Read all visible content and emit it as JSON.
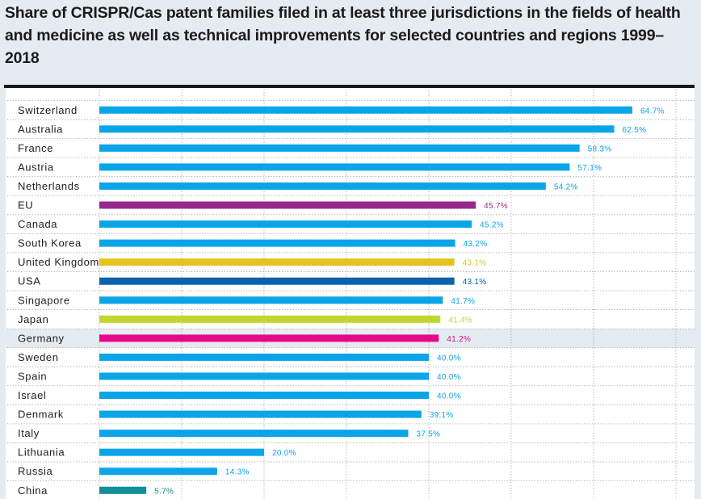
{
  "chart_data": {
    "type": "bar",
    "orientation": "horizontal",
    "title": "Share of CRISPR/Cas patent families filed in at least three jurisdictions in the fields of health and medicine as well as technical improvements for selected countries and regions 1999–2018",
    "xlabel": "",
    "ylabel": "",
    "xlim": [
      0,
      70
    ],
    "grid": true,
    "value_suffix": "%",
    "highlighted_category": "Germany",
    "categories": [
      "Switzerland",
      "Australia",
      "France",
      "Austria",
      "Netherlands",
      "EU",
      "Canada",
      "South Korea",
      "United Kingdom",
      "USA",
      "Singapore",
      "Japan",
      "Germany",
      "Sweden",
      "Spain",
      "Israel",
      "Denmark",
      "Italy",
      "Lithuania",
      "Russia",
      "China"
    ],
    "values": [
      64.7,
      62.5,
      58.3,
      57.1,
      54.2,
      45.7,
      45.2,
      43.2,
      43.1,
      43.1,
      41.7,
      41.4,
      41.2,
      40.0,
      40.0,
      40.0,
      39.1,
      37.5,
      20.0,
      14.3,
      5.7
    ],
    "labels": [
      "64.7%",
      "62.5%",
      "58.3%",
      "57.1%",
      "54.2%",
      "45.7%",
      "45.2%",
      "43.2%",
      "43.1%",
      "43.1%",
      "41.7%",
      "41.4%",
      "41.2%",
      "40.0%",
      "40.0%",
      "40.0%",
      "39.1%",
      "37.5%",
      "20.0%",
      "14.3%",
      "5.7%"
    ],
    "colors": [
      "#0aa5e8",
      "#0aa5e8",
      "#0aa5e8",
      "#0aa5e8",
      "#0aa5e8",
      "#962a8c",
      "#0aa5e8",
      "#0aa5e8",
      "#e6c21c",
      "#0a62ae",
      "#0aa5e8",
      "#c2d631",
      "#e8068a",
      "#0aa5e8",
      "#0aa5e8",
      "#0aa5e8",
      "#0aa5e8",
      "#0aa5e8",
      "#0aa5e8",
      "#0aa5e8",
      "#128f98"
    ]
  },
  "colors": {
    "default_bar": "#0aa5e8",
    "background": "#e4ebf1",
    "highlight_row": "#e4ebf1"
  }
}
